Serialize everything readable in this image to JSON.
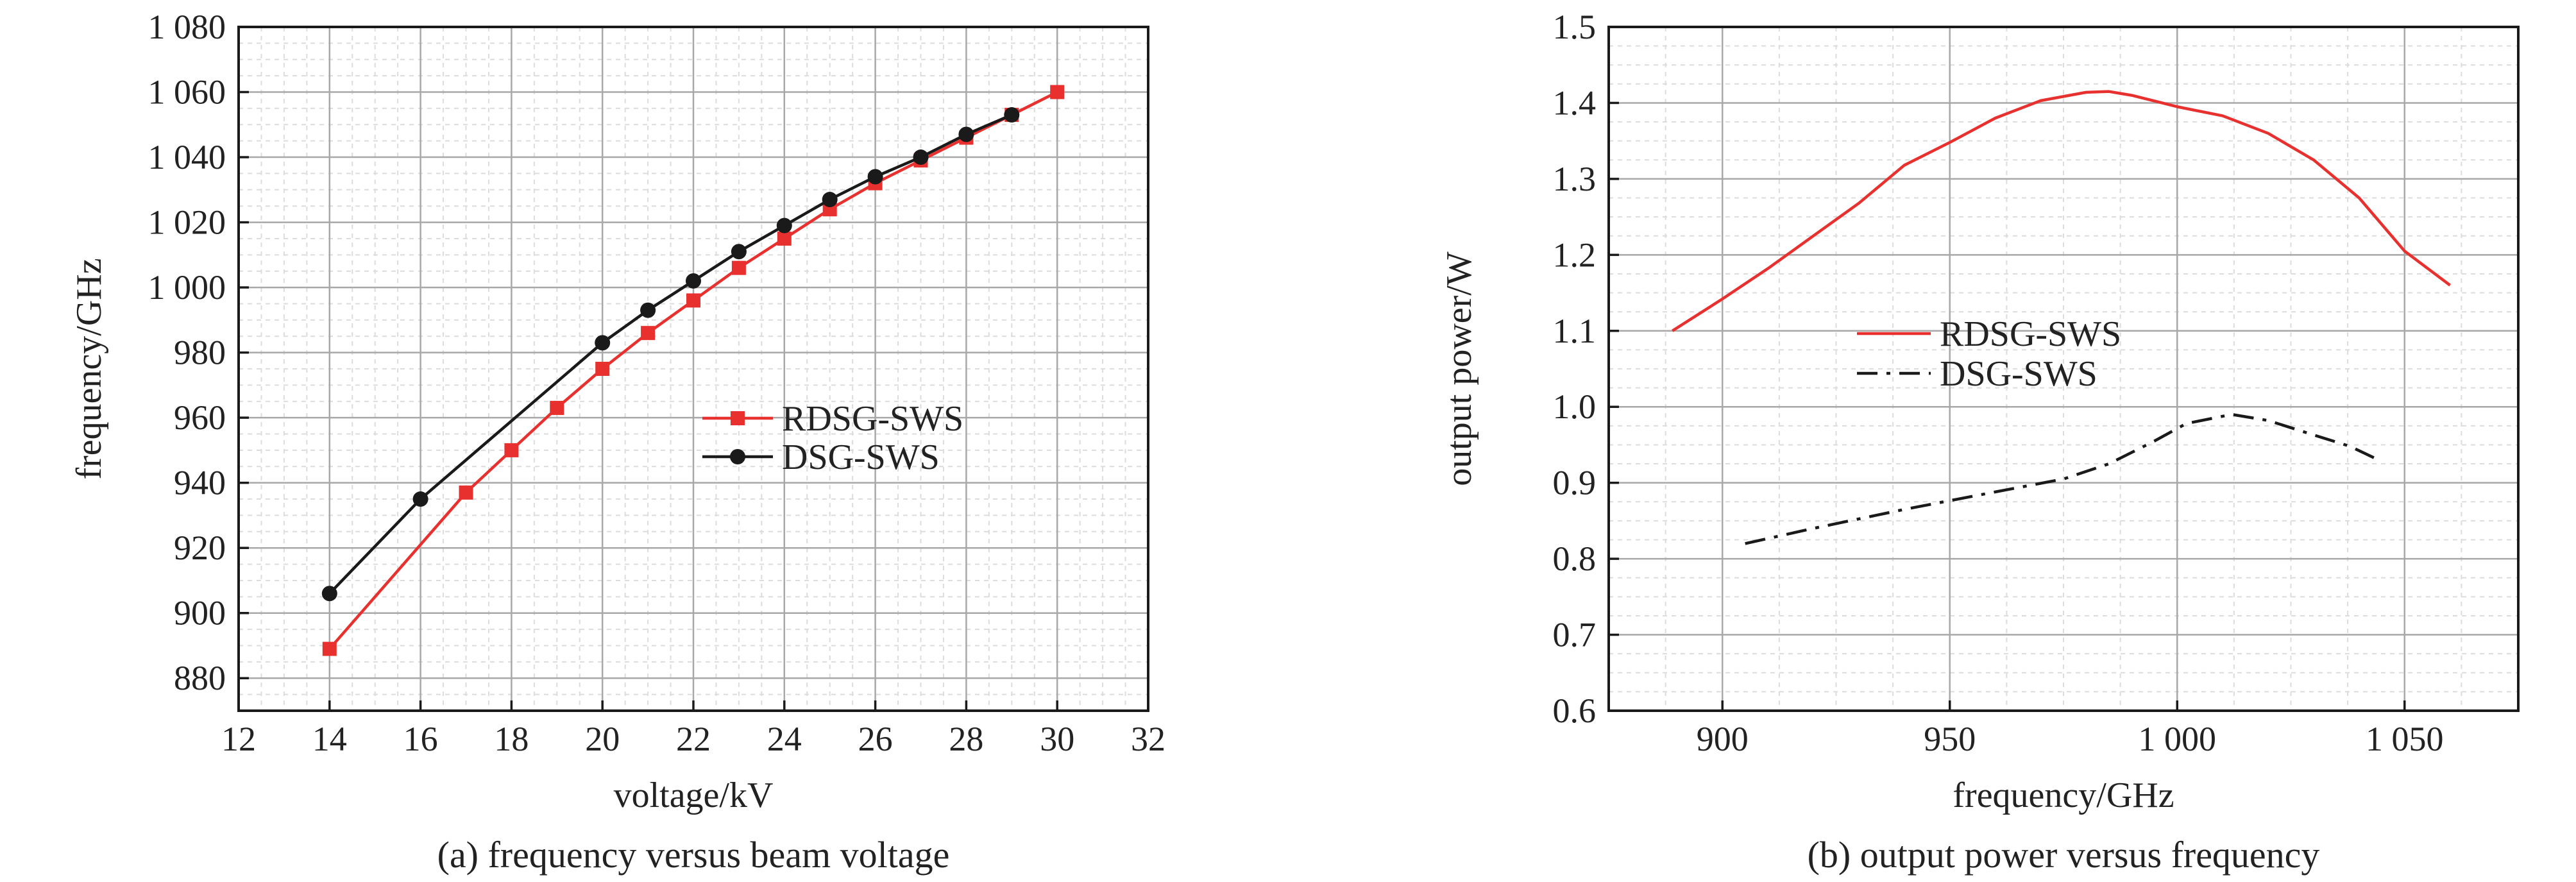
{
  "chart_data": [
    {
      "type": "line",
      "caption": "(a) frequency versus beam voltage",
      "xlabel": "voltage/kV",
      "ylabel": "frequency/GHz",
      "xlim": [
        12,
        32
      ],
      "ylim": [
        870,
        1080
      ],
      "xticks": [
        12,
        14,
        16,
        18,
        20,
        22,
        24,
        26,
        28,
        30,
        32
      ],
      "yticks": [
        880,
        900,
        920,
        940,
        960,
        980,
        1000,
        1020,
        1040,
        1060,
        1080
      ],
      "xtick_labels": [
        "12",
        "14",
        "16",
        "18",
        "20",
        "22",
        "24",
        "26",
        "28",
        "30",
        "32"
      ],
      "ytick_labels": [
        "880",
        "900",
        "920",
        "940",
        "960",
        "980",
        "1 000",
        "1 020",
        "1 040",
        "1 060",
        "1 080"
      ],
      "grid": true,
      "legend_position": "center-right",
      "series": [
        {
          "name": "RDSG-SWS",
          "color": "#e8312f",
          "marker": "square",
          "x": [
            14,
            17,
            18,
            19,
            20,
            21,
            22,
            23,
            24,
            25,
            26,
            27,
            28,
            29,
            30
          ],
          "y": [
            889,
            937,
            950,
            963,
            975,
            986,
            996,
            1006,
            1015,
            1024,
            1032,
            1039,
            1046,
            1053,
            1060
          ]
        },
        {
          "name": "DSG-SWS",
          "color": "#1a1a1a",
          "marker": "circle",
          "x": [
            14,
            16,
            20,
            21,
            22,
            23,
            24,
            25,
            26,
            27,
            28,
            29
          ],
          "y": [
            906,
            935,
            983,
            993,
            1002,
            1011,
            1019,
            1027,
            1034,
            1040,
            1047,
            1053
          ]
        }
      ]
    },
    {
      "type": "line",
      "caption": "(b) output power versus frequency",
      "xlabel": "frequency/GHz",
      "ylabel": "output power/W",
      "xlim": [
        875,
        1075
      ],
      "ylim": [
        0.6,
        1.5
      ],
      "xticks": [
        900,
        950,
        1000,
        1050
      ],
      "yticks": [
        0.6,
        0.7,
        0.8,
        0.9,
        1.0,
        1.1,
        1.2,
        1.3,
        1.4,
        1.5
      ],
      "xtick_labels": [
        "900",
        "950",
        "1 000",
        "1 050"
      ],
      "ytick_labels": [
        "0.6",
        "0.7",
        "0.8",
        "0.9",
        "1.0",
        "1.1",
        "1.2",
        "1.3",
        "1.4",
        "1.5"
      ],
      "grid": true,
      "legend_position": "center-left",
      "series": [
        {
          "name": "RDSG-SWS",
          "color": "#e8312f",
          "style": "solid",
          "x": [
            889,
            900,
            910,
            920,
            930,
            940,
            950,
            960,
            970,
            980,
            985,
            990,
            1000,
            1010,
            1020,
            1030,
            1040,
            1050,
            1060
          ],
          "y": [
            1.1,
            1.142,
            1.182,
            1.225,
            1.268,
            1.318,
            1.348,
            1.38,
            1.403,
            1.414,
            1.415,
            1.41,
            1.395,
            1.383,
            1.36,
            1.325,
            1.275,
            1.205,
            1.16
          ]
        },
        {
          "name": "DSG-SWS",
          "color": "#1a1a1a",
          "style": "dash-dot",
          "x": [
            905,
            920,
            940,
            960,
            975,
            985,
            995,
            1002,
            1012,
            1020,
            1030,
            1038,
            1045
          ],
          "y": [
            0.82,
            0.84,
            0.865,
            0.888,
            0.905,
            0.925,
            0.955,
            0.978,
            0.99,
            0.982,
            0.963,
            0.948,
            0.928
          ]
        }
      ]
    }
  ]
}
